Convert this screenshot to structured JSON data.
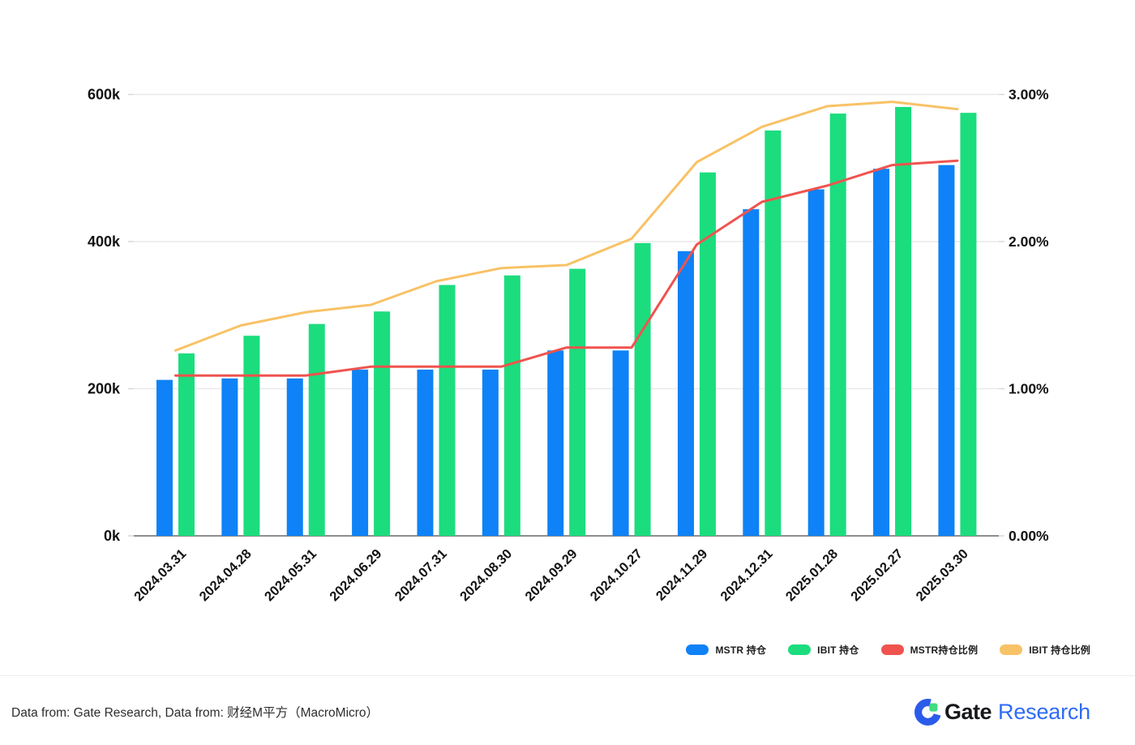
{
  "chart_data": {
    "type": "bar",
    "subtype": "grouped-bars-with-lines",
    "categories": [
      "2024.03.31",
      "2024.04.28",
      "2024.05.31",
      "2024.06.29",
      "2024.07.31",
      "2024.08.30",
      "2024.09.29",
      "2024.10.27",
      "2024.11.29",
      "2024.12.31",
      "2025.01.28",
      "2025.02.27",
      "2025.03.30"
    ],
    "left_axis": {
      "ticks": [
        "0k",
        "200k",
        "400k",
        "600k"
      ],
      "min": 0,
      "max": 600,
      "step": 200,
      "unit": "k"
    },
    "right_axis": {
      "ticks": [
        "0.00%",
        "1.00%",
        "2.00%",
        "3.00%"
      ],
      "min": 0,
      "max": 3,
      "step": 1,
      "unit": "%"
    },
    "grid": true,
    "legend_position": "bottom-right",
    "series": [
      {
        "id": "mstr-holdings",
        "name": "MSTR 持仓",
        "type": "bar",
        "axis": "left",
        "color": "#0e82f6",
        "values_k": [
          212,
          214,
          214,
          226,
          226,
          226,
          252,
          252,
          387,
          444,
          471,
          499,
          504
        ]
      },
      {
        "id": "ibit-holdings",
        "name": "IBIT 持仓",
        "type": "bar",
        "axis": "left",
        "color": "#1bdd7e",
        "values_k": [
          248,
          272,
          288,
          305,
          341,
          354,
          363,
          398,
          494,
          551,
          574,
          583,
          575
        ]
      },
      {
        "id": "mstr-ratio",
        "name": "MSTR持仓比例",
        "type": "line",
        "axis": "right",
        "color": "#f0534e",
        "values_pct": [
          1.09,
          1.09,
          1.09,
          1.15,
          1.15,
          1.15,
          1.28,
          1.28,
          1.98,
          2.27,
          2.38,
          2.52,
          2.55
        ]
      },
      {
        "id": "ibit-ratio",
        "name": "IBIT 持仓比例",
        "type": "line",
        "axis": "right",
        "color": "#f8c266",
        "values_pct": [
          1.26,
          1.43,
          1.52,
          1.57,
          1.73,
          1.82,
          1.84,
          2.02,
          2.54,
          2.78,
          2.92,
          2.95,
          2.9
        ]
      }
    ]
  },
  "footer": {
    "source_text": "Data from: Gate Research, Data from: 财经M平方（MacroMicro）",
    "logo_gate": "Gate",
    "logo_research": "Research"
  },
  "colors": {
    "axis_text": "#121212",
    "grid": "#eaeaea",
    "baseline": "#8d8d8d",
    "tick": "#d6d6d6",
    "mstr_blue": "#0e82f6",
    "ibit_green": "#1bdd7e",
    "mstr_ratio_red": "#f0534e",
    "ibit_ratio_orange": "#f8c266",
    "logo_blue": "#2b5bea",
    "logo_green": "#3fdc81",
    "research_blue": "#2f6bf5"
  }
}
